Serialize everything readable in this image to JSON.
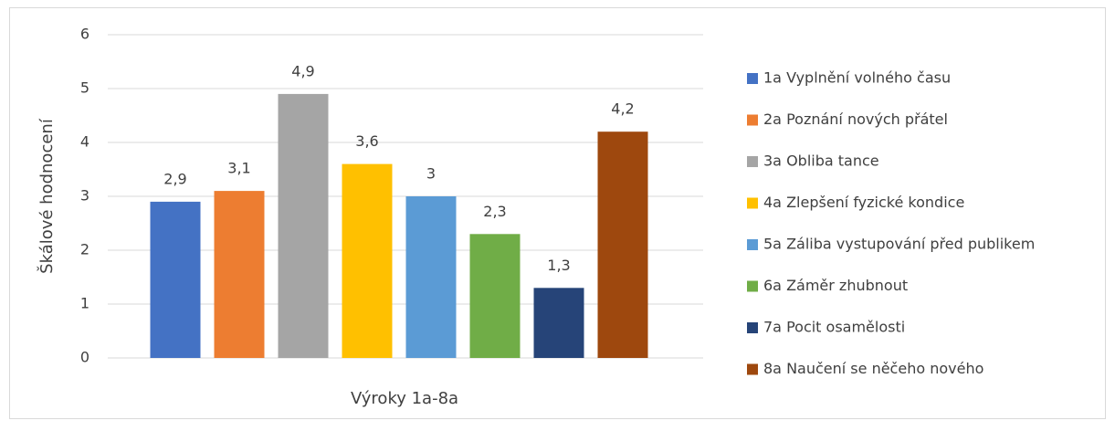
{
  "chart_data": {
    "type": "bar",
    "x_label": "Výroky 1a-8a",
    "y_label": "Škálové hodnocení",
    "series": [
      {
        "name": "1a Vyplnění volného času",
        "color": "#4472c4",
        "values": [
          2.9
        ],
        "value_labels": [
          "2,9"
        ]
      },
      {
        "name": "2a Poznání nových přátel",
        "color": "#ed7d31",
        "values": [
          3.1
        ],
        "value_labels": [
          "3,1"
        ]
      },
      {
        "name": "3a Obliba tance",
        "color": "#a5a5a5",
        "values": [
          4.9
        ],
        "value_labels": [
          "4,9"
        ]
      },
      {
        "name": "4a Zlepšení fyzické kondice",
        "color": "#ffc000",
        "values": [
          3.6
        ],
        "value_labels": [
          "3,6"
        ]
      },
      {
        "name": "5a Záliba vystupování před publikem",
        "color": "#5b9bd5",
        "values": [
          3
        ],
        "value_labels": [
          "3"
        ]
      },
      {
        "name": "6a Záměr zhubnout",
        "color": "#70ad47",
        "values": [
          2.3
        ],
        "value_labels": [
          "2,3"
        ]
      },
      {
        "name": "7a Pocit osamělosti",
        "color": "#264478",
        "values": [
          1.3
        ],
        "value_labels": [
          "1,3"
        ]
      },
      {
        "name": "8a Naučení se něčeho nového",
        "color": "#9e480e",
        "values": [
          4.2
        ],
        "value_labels": [
          "4,2"
        ]
      }
    ],
    "ylim": [
      0,
      6
    ],
    "yticks": [
      0,
      1,
      2,
      3,
      4,
      5,
      6
    ],
    "grid": true,
    "legend": "right"
  }
}
